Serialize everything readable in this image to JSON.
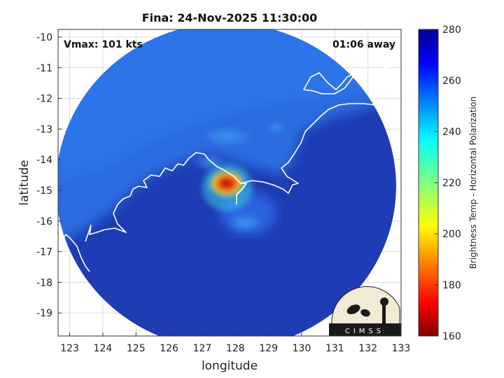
{
  "plot": {
    "title": "Fina: 24-Nov-2025 11:30:00",
    "vmax_label": "Vmax: 101 kts",
    "away_label": "01:06 away",
    "xlabel": "longitude",
    "ylabel": "latitude",
    "colorbar_label": "Brightness Temp - Horizontal Polarization",
    "logo_text": "CIMSS"
  },
  "axes": {
    "x_ticks": [
      123,
      124,
      125,
      126,
      127,
      128,
      129,
      130,
      131,
      132,
      133
    ],
    "y_ticks": [
      -10,
      -11,
      -12,
      -13,
      -14,
      -15,
      -16,
      -17,
      -18,
      -19
    ],
    "xlim": [
      122.65,
      133
    ],
    "ylim": [
      -19.75,
      -9.75
    ],
    "grid": true
  },
  "colorbar": {
    "ticks": [
      160,
      180,
      200,
      220,
      240,
      260,
      280
    ],
    "range": [
      160,
      280
    ],
    "colormap": "jet"
  },
  "colors": {
    "swath_background": "#1e3cb4",
    "land_warm": "#2a6fe6",
    "eye_core": "#b40c0c",
    "coastline": "#ffffff",
    "axis": "#333333",
    "grid": "#dcdcdc"
  }
}
